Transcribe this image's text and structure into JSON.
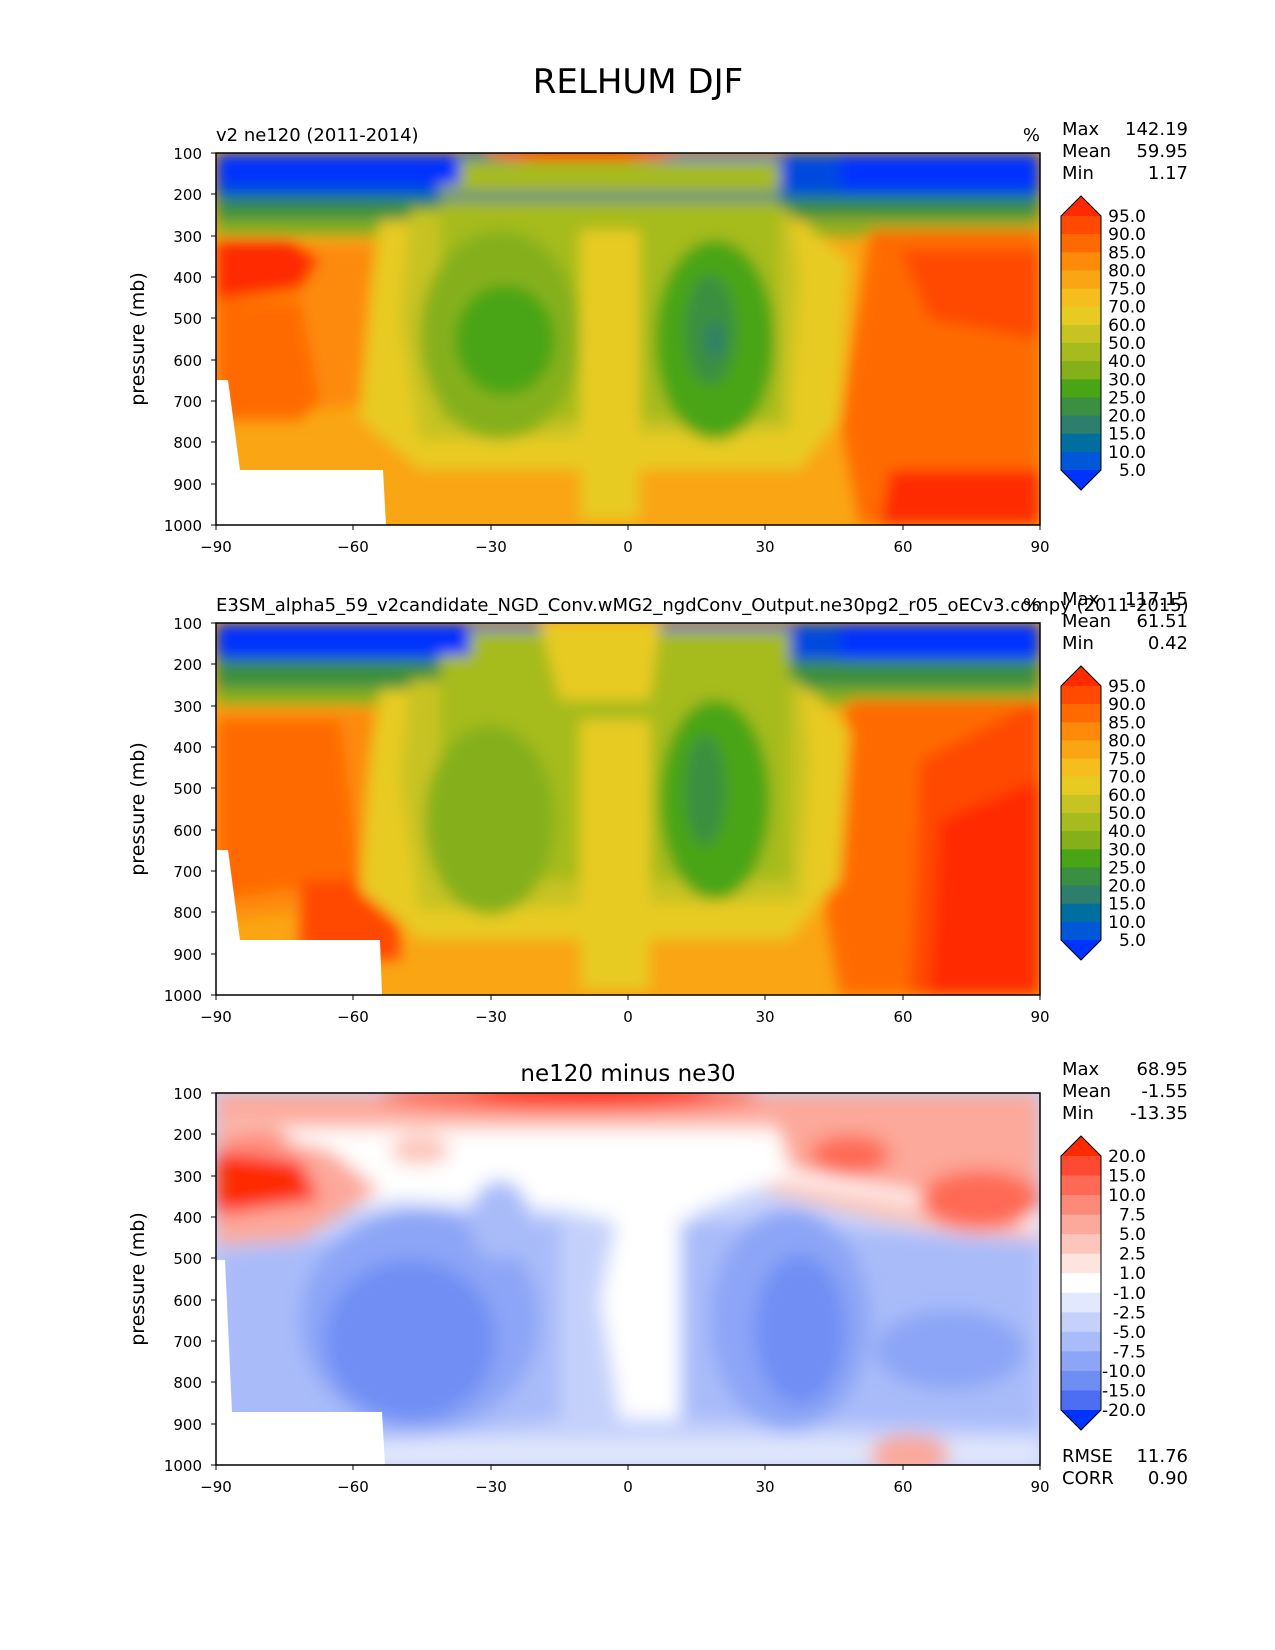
{
  "figure_title": "RELHUM DJF",
  "chart_data": [
    {
      "type": "contour",
      "title": "v2 ne120 (2011-2014)",
      "units": "%",
      "xlabel": "",
      "ylabel": "pressure (mb)",
      "xlim": [
        -90,
        90
      ],
      "ylim": [
        1000,
        100
      ],
      "xticks": [
        "−90",
        "−60",
        "−30",
        "0",
        "30",
        "60",
        "90"
      ],
      "xtick_values": [
        -90,
        -60,
        -30,
        0,
        30,
        60,
        90
      ],
      "yticks": [
        "100",
        "200",
        "300",
        "400",
        "500",
        "600",
        "700",
        "800",
        "900",
        "1000"
      ],
      "ytick_values": [
        100,
        200,
        300,
        400,
        500,
        600,
        700,
        800,
        900,
        1000
      ],
      "stats": [
        {
          "label": "Max",
          "value": "142.19"
        },
        {
          "label": "Mean",
          "value": "59.95"
        },
        {
          "label": "Min",
          "value": "1.17"
        }
      ],
      "colorbar_levels": [
        "95.0",
        "90.0",
        "85.0",
        "80.0",
        "75.0",
        "70.0",
        "60.0",
        "50.0",
        "40.0",
        "30.0",
        "25.0",
        "20.0",
        "15.0",
        "10.0",
        "5.0"
      ],
      "colorbar_colors": [
        "#ff2a00",
        "#ff4a00",
        "#ff6a00",
        "#fd8a0a",
        "#faa514",
        "#f5be1e",
        "#e8cb22",
        "#c7c322",
        "#a6bb1e",
        "#85b01a",
        "#4aa516",
        "#3a8f40",
        "#2e7e6e",
        "#006fa0",
        "#0058d8",
        "#0033ff"
      ],
      "features": [
        {
          "name": "polar-dry-nh",
          "lat": [
            45,
            90
          ],
          "p": [
            100,
            200
          ],
          "value": 5
        },
        {
          "name": "polar-dry-sh",
          "lat": [
            -90,
            -40
          ],
          "p": [
            100,
            200
          ],
          "value": 5
        },
        {
          "name": "sh-subtropical-min",
          "lat": -27,
          "p": 550,
          "value": 30
        },
        {
          "name": "nh-subtropical-min",
          "lat": 20,
          "p": 520,
          "value": 20
        },
        {
          "name": "nh-polar-surface-max",
          "lat": [
            60,
            90
          ],
          "p": [
            850,
            1000
          ],
          "value": 95
        },
        {
          "name": "sh-high-lat-max",
          "lat": [
            -90,
            -70
          ],
          "p": [
            300,
            400
          ],
          "value": 95
        }
      ]
    },
    {
      "type": "contour",
      "title": "E3SM_alpha5_59_v2candidate_NGD_Conv.wMG2_ngdConv_Output.ne30pg2_r05_oECv3.compy (2011-2015)",
      "units": "%",
      "xlabel": "",
      "ylabel": "pressure (mb)",
      "xlim": [
        -90,
        90
      ],
      "ylim": [
        1000,
        100
      ],
      "xticks": [
        "−90",
        "−60",
        "−30",
        "0",
        "30",
        "60",
        "90"
      ],
      "xtick_values": [
        -90,
        -60,
        -30,
        0,
        30,
        60,
        90
      ],
      "yticks": [
        "100",
        "200",
        "300",
        "400",
        "500",
        "600",
        "700",
        "800",
        "900",
        "1000"
      ],
      "ytick_values": [
        100,
        200,
        300,
        400,
        500,
        600,
        700,
        800,
        900,
        1000
      ],
      "stats": [
        {
          "label": "Max",
          "value": "117.15"
        },
        {
          "label": "Mean",
          "value": "61.51"
        },
        {
          "label": "Min",
          "value": "0.42"
        }
      ],
      "colorbar_levels": [
        "95.0",
        "90.0",
        "85.0",
        "80.0",
        "75.0",
        "70.0",
        "60.0",
        "50.0",
        "40.0",
        "30.0",
        "25.0",
        "20.0",
        "15.0",
        "10.0",
        "5.0"
      ],
      "colorbar_colors": [
        "#ff2a00",
        "#ff4a00",
        "#ff6a00",
        "#fd8a0a",
        "#faa514",
        "#f5be1e",
        "#e8cb22",
        "#c7c322",
        "#a6bb1e",
        "#85b01a",
        "#4aa516",
        "#3a8f40",
        "#2e7e6e",
        "#006fa0",
        "#0058d8",
        "#0033ff"
      ],
      "features": [
        {
          "name": "polar-dry-nh",
          "lat": [
            45,
            90
          ],
          "p": [
            100,
            200
          ],
          "value": 5
        },
        {
          "name": "polar-dry-sh",
          "lat": [
            -90,
            -40
          ],
          "p": [
            100,
            200
          ],
          "value": 5
        },
        {
          "name": "sh-subtropical-min",
          "lat": -28,
          "p": 580,
          "value": 40
        },
        {
          "name": "nh-subtropical-min",
          "lat": 18,
          "p": 530,
          "value": 25
        },
        {
          "name": "nh-polar-surface-max",
          "lat": [
            62,
            90
          ],
          "p": [
            700,
            1000
          ],
          "value": 95
        }
      ]
    },
    {
      "type": "contour",
      "title": "ne120 minus ne30",
      "units": "",
      "xlabel": "",
      "ylabel": "pressure (mb)",
      "xlim": [
        -90,
        90
      ],
      "ylim": [
        1000,
        100
      ],
      "xticks": [
        "−90",
        "−60",
        "−30",
        "0",
        "30",
        "60",
        "90"
      ],
      "xtick_values": [
        -90,
        -60,
        -30,
        0,
        30,
        60,
        90
      ],
      "yticks": [
        "100",
        "200",
        "300",
        "400",
        "500",
        "600",
        "700",
        "800",
        "900",
        "1000"
      ],
      "ytick_values": [
        100,
        200,
        300,
        400,
        500,
        600,
        700,
        800,
        900,
        1000
      ],
      "stats": [
        {
          "label": "Max",
          "value": "68.95"
        },
        {
          "label": "Mean",
          "value": "-1.55"
        },
        {
          "label": "Min",
          "value": "-13.35"
        }
      ],
      "extra_stats": [
        {
          "label": "RMSE",
          "value": "11.76"
        },
        {
          "label": "CORR",
          "value": "0.90"
        }
      ],
      "colorbar_levels": [
        "20.0",
        "15.0",
        "10.0",
        "7.5",
        "5.0",
        "2.5",
        "1.0",
        "-1.0",
        "-2.5",
        "-5.0",
        "-7.5",
        "-10.0",
        "-15.0",
        "-20.0"
      ],
      "colorbar_colors": [
        "#ff2a00",
        "#ff4a33",
        "#fe6a55",
        "#fd8a78",
        "#fca89a",
        "#fcc6bc",
        "#fde4de",
        "#ffffff",
        "#e2e8fd",
        "#c5d1fb",
        "#a9bbf9",
        "#8ca5f6",
        "#6f8ef4",
        "#4d6ef3",
        "#0033ff"
      ],
      "features": [
        {
          "name": "upper-trop-positive",
          "lat": [
            -90,
            90
          ],
          "p": [
            100,
            150
          ],
          "value": 20
        },
        {
          "name": "sh-300mb-positive",
          "lat": -80,
          "p": 300,
          "value": 20
        },
        {
          "name": "nh-300mb-positive",
          "lat": 75,
          "p": 330,
          "value": 10
        },
        {
          "name": "sh-midtrop-negative",
          "lat": -45,
          "p": 650,
          "value": -15
        },
        {
          "name": "nh-midtrop-negative",
          "lat": 35,
          "p": 650,
          "value": -15
        },
        {
          "name": "equatorial-neutral",
          "lat": 5,
          "p": 600,
          "value": 0
        },
        {
          "name": "nh-surface-positive",
          "lat": 62,
          "p": 980,
          "value": 10
        }
      ]
    }
  ]
}
